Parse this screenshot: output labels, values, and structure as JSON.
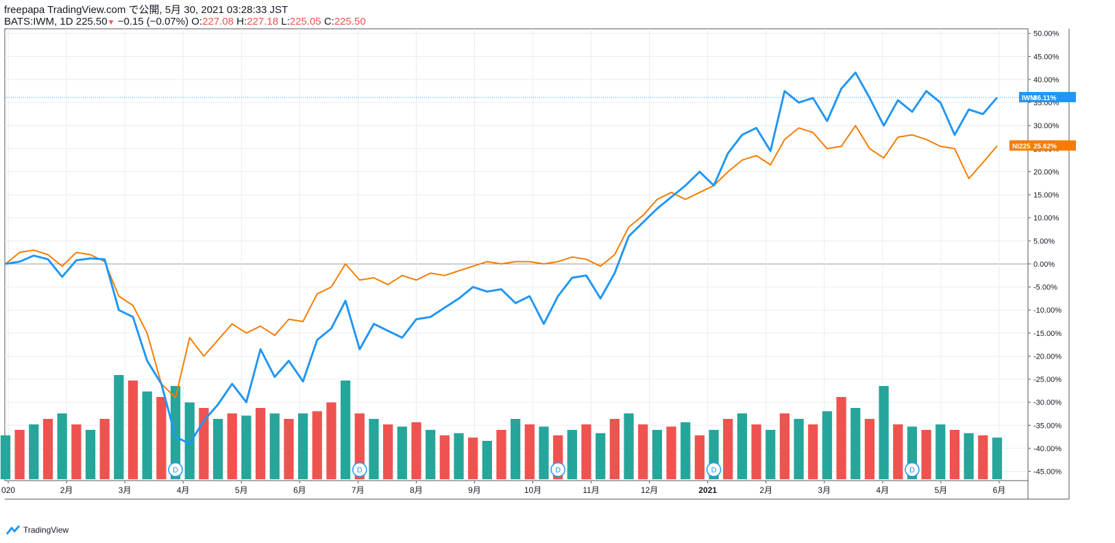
{
  "header": {
    "published": "freepapa TradingView.com で公開, 5月 30, 2021 03:28:33 JST",
    "symbol": "BATS:IWM, 1D",
    "last": "225.50",
    "change_arrow": "▼",
    "change": "−0.15 (−0.07%)",
    "o_label": "O:",
    "o_value": "227.08",
    "h_label": "H:",
    "h_value": "227.18",
    "l_label": "L:",
    "l_value": "225.05",
    "c_label": "C:",
    "c_value": "225.50"
  },
  "brand": {
    "label": "TradingView",
    "icon": "tradingview-cloud-icon"
  },
  "colors": {
    "iwm": "#2196f3",
    "ni225": "#f57c00",
    "vol_up": "#26a69a",
    "vol_down": "#ef5350",
    "grid": "#e6edf3"
  },
  "chart_data": {
    "type": "line",
    "y_axis": {
      "unit": "%",
      "min": -47,
      "max": 51,
      "ticks": [
        "50.00%",
        "45.00%",
        "40.00%",
        "35.00%",
        "30.00%",
        "25.00%",
        "20.00%",
        "15.00%",
        "10.00%",
        "5.00%",
        "0.00%",
        "-5.00%",
        "-10.00%",
        "-15.00%",
        "-20.00%",
        "-25.00%",
        "-30.00%",
        "-35.00%",
        "-40.00%",
        "-45.00%"
      ]
    },
    "x_axis": {
      "ticks": [
        "020",
        "2月",
        "3月",
        "4月",
        "5月",
        "6月",
        "7月",
        "8月",
        "9月",
        "10月",
        "11月",
        "12月",
        "2021",
        "2月",
        "3月",
        "4月",
        "5月",
        "6月"
      ]
    },
    "grid": true,
    "series": [
      {
        "name": "IWM",
        "label": "36.11%",
        "last": 36.11,
        "x": [
          "2020-01",
          "2020-01",
          "2020-01",
          "2020-01",
          "2020-02",
          "2020-02",
          "2020-02",
          "2020-02",
          "2020-03",
          "2020-03",
          "2020-03",
          "2020-03",
          "2020-03",
          "2020-03",
          "2020-04",
          "2020-04",
          "2020-04",
          "2020-04",
          "2020-05",
          "2020-05",
          "2020-05",
          "2020-05",
          "2020-06",
          "2020-06",
          "2020-06",
          "2020-06",
          "2020-06",
          "2020-07",
          "2020-07",
          "2020-07",
          "2020-07",
          "2020-08",
          "2020-08",
          "2020-08",
          "2020-08",
          "2020-09",
          "2020-09",
          "2020-09",
          "2020-09",
          "2020-10",
          "2020-10",
          "2020-10",
          "2020-10",
          "2020-11",
          "2020-11",
          "2020-11",
          "2020-11",
          "2020-12",
          "2020-12",
          "2020-12",
          "2020-12",
          "2021-01",
          "2021-01",
          "2021-01",
          "2021-01",
          "2021-02",
          "2021-02",
          "2021-02",
          "2021-02",
          "2021-03",
          "2021-03",
          "2021-03",
          "2021-03",
          "2021-04",
          "2021-04",
          "2021-04",
          "2021-04",
          "2021-05",
          "2021-05",
          "2021-05",
          "2021-05"
        ],
        "y": [
          0.0,
          0.5,
          1.8,
          1.0,
          -2.8,
          0.8,
          1.2,
          1.0,
          -10.0,
          -11.5,
          -21.0,
          -26.0,
          -37.5,
          -39.0,
          -34.0,
          -30.5,
          -26.0,
          -30.0,
          -18.5,
          -24.5,
          -21.0,
          -25.5,
          -16.5,
          -14.0,
          -8.0,
          -18.5,
          -13.0,
          -14.5,
          -16.0,
          -12.0,
          -11.5,
          -9.5,
          -7.5,
          -5.0,
          -6.0,
          -5.5,
          -8.5,
          -7.0,
          -13.0,
          -7.0,
          -3.0,
          -2.5,
          -7.5,
          -2.0,
          6.0,
          9.0,
          12.0,
          14.5,
          17.0,
          20.0,
          17.0,
          24.0,
          28.0,
          29.5,
          24.5,
          37.5,
          35.0,
          36.0,
          31.0,
          38.0,
          41.5,
          36.0,
          30.0,
          35.5,
          33.0,
          37.5,
          35.0,
          28.0,
          33.5,
          32.5,
          36.1
        ]
      },
      {
        "name": "NI225",
        "label": "25.62%",
        "last": 25.62,
        "x": [
          "2020-01",
          "2020-01",
          "2020-01",
          "2020-01",
          "2020-02",
          "2020-02",
          "2020-02",
          "2020-02",
          "2020-03",
          "2020-03",
          "2020-03",
          "2020-03",
          "2020-03",
          "2020-03",
          "2020-04",
          "2020-04",
          "2020-04",
          "2020-04",
          "2020-05",
          "2020-05",
          "2020-05",
          "2020-05",
          "2020-06",
          "2020-06",
          "2020-06",
          "2020-06",
          "2020-06",
          "2020-07",
          "2020-07",
          "2020-07",
          "2020-07",
          "2020-08",
          "2020-08",
          "2020-08",
          "2020-08",
          "2020-09",
          "2020-09",
          "2020-09",
          "2020-09",
          "2020-10",
          "2020-10",
          "2020-10",
          "2020-10",
          "2020-11",
          "2020-11",
          "2020-11",
          "2020-11",
          "2020-12",
          "2020-12",
          "2020-12",
          "2020-12",
          "2021-01",
          "2021-01",
          "2021-01",
          "2021-01",
          "2021-02",
          "2021-02",
          "2021-02",
          "2021-02",
          "2021-03",
          "2021-03",
          "2021-03",
          "2021-03",
          "2021-04",
          "2021-04",
          "2021-04",
          "2021-04",
          "2021-05",
          "2021-05",
          "2021-05",
          "2021-05"
        ],
        "y": [
          0.0,
          2.5,
          3.0,
          2.0,
          -0.5,
          2.5,
          2.0,
          0.5,
          -7.0,
          -9.0,
          -15.0,
          -26.0,
          -29.0,
          -16.0,
          -20.0,
          -16.5,
          -13.0,
          -15.0,
          -13.5,
          -15.5,
          -12.0,
          -12.5,
          -6.5,
          -5.0,
          0.0,
          -3.5,
          -3.0,
          -4.5,
          -2.5,
          -3.5,
          -2.0,
          -2.5,
          -1.5,
          -0.5,
          0.5,
          0.0,
          0.5,
          0.5,
          0.0,
          0.5,
          1.5,
          1.0,
          -0.5,
          2.0,
          8.0,
          10.5,
          14.0,
          15.5,
          14.0,
          15.5,
          17.0,
          20.0,
          22.5,
          23.5,
          21.5,
          27.0,
          29.5,
          28.5,
          25.0,
          25.5,
          30.0,
          25.0,
          23.0,
          27.5,
          28.0,
          27.0,
          25.5,
          25.0,
          18.5,
          22.0,
          25.6
        ]
      }
    ],
    "volume": {
      "values": [
        0.4,
        0.45,
        0.5,
        0.55,
        0.6,
        0.5,
        0.45,
        0.55,
        0.95,
        0.9,
        0.8,
        0.75,
        0.85,
        0.7,
        0.65,
        0.55,
        0.6,
        0.58,
        0.65,
        0.6,
        0.55,
        0.6,
        0.62,
        0.7,
        0.9,
        0.6,
        0.55,
        0.5,
        0.48,
        0.52,
        0.45,
        0.4,
        0.42,
        0.38,
        0.35,
        0.45,
        0.55,
        0.5,
        0.48,
        0.4,
        0.45,
        0.5,
        0.42,
        0.55,
        0.6,
        0.5,
        0.45,
        0.48,
        0.52,
        0.4,
        0.45,
        0.55,
        0.6,
        0.5,
        0.45,
        0.6,
        0.55,
        0.5,
        0.62,
        0.75,
        0.65,
        0.55,
        0.85,
        0.5,
        0.48,
        0.45,
        0.5,
        0.45,
        0.42,
        0.4,
        0.38
      ],
      "up": [
        true,
        false,
        true,
        false,
        true,
        false,
        true,
        false,
        true,
        false,
        true,
        false,
        true,
        true,
        false,
        true,
        false,
        true,
        false,
        true,
        false,
        true,
        false,
        false,
        true,
        false,
        true,
        false,
        true,
        false,
        true,
        false,
        true,
        false,
        true,
        false,
        true,
        false,
        true,
        false,
        true,
        false,
        true,
        false,
        true,
        false,
        true,
        false,
        true,
        false,
        true,
        false,
        true,
        false,
        true,
        false,
        true,
        false,
        true,
        false,
        true,
        false,
        true,
        false,
        true,
        false,
        true,
        false,
        true,
        false,
        true
      ]
    },
    "dividend_markers": [
      "D",
      "D",
      "D",
      "D",
      "D"
    ],
    "dividend_x_index": [
      12,
      25,
      39,
      50,
      64
    ]
  }
}
